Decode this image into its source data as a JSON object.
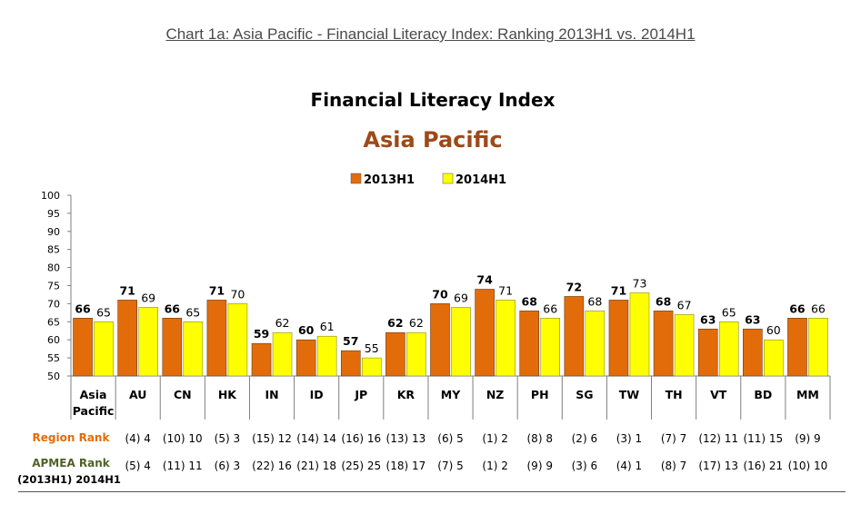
{
  "page_caption": "Chart 1a: Asia Pacific - Financial Literacy Index:  Ranking 2013H1 vs. 2014H1",
  "colors": {
    "series1": "#E36C0A",
    "series2": "#FFFF00",
    "region_rank": "#E36C0A",
    "apmea_rank": "#4F6228"
  },
  "chart_data": {
    "type": "bar",
    "title": "Financial Literacy Index",
    "subtitle": "Asia Pacific",
    "ylim": [
      50,
      100
    ],
    "yticks": [
      50,
      55,
      60,
      65,
      70,
      75,
      80,
      85,
      90,
      95,
      100
    ],
    "legend_position": "top-center",
    "categories": [
      "Asia Pacific",
      "AU",
      "CN",
      "HK",
      "IN",
      "ID",
      "JP",
      "KR",
      "MY",
      "NZ",
      "PH",
      "SG",
      "TW",
      "TH",
      "VT",
      "BD",
      "MM"
    ],
    "series": [
      {
        "name": "2013H1",
        "values": [
          66,
          71,
          66,
          71,
          59,
          60,
          57,
          62,
          70,
          74,
          68,
          72,
          71,
          68,
          63,
          63,
          66
        ]
      },
      {
        "name": "2014H1",
        "values": [
          65,
          69,
          65,
          70,
          62,
          61,
          55,
          62,
          69,
          71,
          66,
          68,
          73,
          67,
          65,
          60,
          66
        ]
      }
    ],
    "row_labels": {
      "region_rank": "Region Rank",
      "apmea_rank": "APMEA Rank",
      "apmea_sub": "(2013H1) 2014H1"
    },
    "region_rank": [
      "",
      "(4) 4",
      "(10) 10",
      "(5) 3",
      "(15) 12",
      "(14) 14",
      "(16) 16",
      "(13) 13",
      "(6) 5",
      "(1) 2",
      "(8) 8",
      "(2) 6",
      "(3) 1",
      "(7) 7",
      "(12) 11",
      "(11) 15",
      "(9) 9"
    ],
    "apmea_rank": [
      "",
      "(5) 4",
      "(11) 11",
      "(6) 3",
      "(22) 16",
      "(21) 18",
      "(25) 25",
      "(18) 17",
      "(7) 5",
      "(1) 2",
      "(9) 9",
      "(3) 6",
      "(4) 1",
      "(8) 7",
      "(17) 13",
      "(16) 21",
      "(10) 10"
    ]
  }
}
